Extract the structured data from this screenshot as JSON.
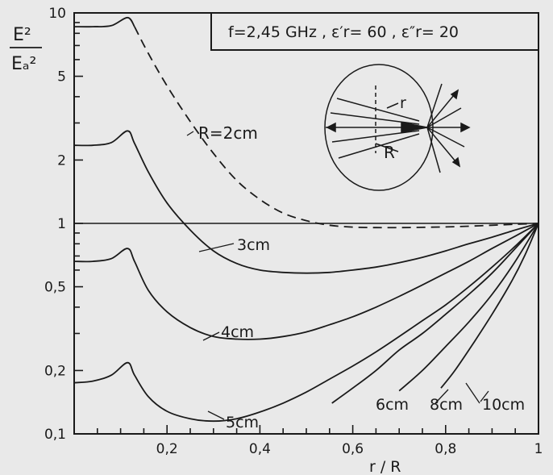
{
  "chart_data": {
    "type": "line",
    "title": "",
    "annotation_box": "f=2,45 GHz , ε′r= 60 , ε″r= 20",
    "xlabel": "r / R",
    "ylabel_numerator": "E²",
    "ylabel_denominator": "Eₐ²",
    "xlim": [
      0,
      1
    ],
    "ylim": [
      0.1,
      10
    ],
    "y_scale": "log",
    "grid": false,
    "x_ticks": [
      {
        "value": 0.2,
        "label": "0,2"
      },
      {
        "value": 0.4,
        "label": "0,4"
      },
      {
        "value": 0.6,
        "label": "0,6"
      },
      {
        "value": 0.8,
        "label": "0,8"
      },
      {
        "value": 1.0,
        "label": "1"
      }
    ],
    "y_ticks": [
      {
        "value": 10,
        "label": "10"
      },
      {
        "value": 5,
        "label": "5"
      },
      {
        "value": 2,
        "label": "2"
      },
      {
        "value": 1,
        "label": "1"
      },
      {
        "value": 0.5,
        "label": "0,5"
      },
      {
        "value": 0.2,
        "label": "0,2"
      },
      {
        "value": 0.1,
        "label": "0,1"
      }
    ],
    "reference_line": {
      "y": 1
    },
    "series": [
      {
        "label": "R=2cm",
        "style": "solid-then-dashed",
        "x": [
          0.0,
          0.04,
          0.08,
          0.115,
          0.13,
          0.16,
          0.2,
          0.25,
          0.3,
          0.35,
          0.4,
          0.45,
          0.5,
          0.55,
          0.6,
          0.65,
          0.7,
          0.75,
          0.8,
          0.85,
          0.9,
          0.95,
          1.0
        ],
        "y": [
          8.6,
          8.6,
          8.7,
          9.5,
          8.6,
          6.4,
          4.5,
          3.05,
          2.15,
          1.6,
          1.3,
          1.12,
          1.03,
          0.98,
          0.96,
          0.955,
          0.955,
          0.958,
          0.962,
          0.97,
          0.98,
          0.99,
          1.0
        ],
        "dash_from_x": 0.13
      },
      {
        "label": "3cm",
        "style": "solid",
        "x": [
          0.0,
          0.04,
          0.08,
          0.115,
          0.13,
          0.16,
          0.2,
          0.25,
          0.3,
          0.35,
          0.4,
          0.45,
          0.5,
          0.55,
          0.6,
          0.65,
          0.7,
          0.75,
          0.8,
          0.85,
          0.9,
          0.95,
          1.0
        ],
        "y": [
          2.35,
          2.35,
          2.42,
          2.75,
          2.4,
          1.75,
          1.25,
          0.93,
          0.74,
          0.645,
          0.6,
          0.585,
          0.58,
          0.585,
          0.6,
          0.62,
          0.65,
          0.69,
          0.74,
          0.8,
          0.86,
          0.93,
          1.0
        ]
      },
      {
        "label": "4cm",
        "style": "solid",
        "x": [
          0.0,
          0.04,
          0.08,
          0.115,
          0.13,
          0.16,
          0.2,
          0.25,
          0.3,
          0.35,
          0.4,
          0.45,
          0.5,
          0.55,
          0.6,
          0.65,
          0.7,
          0.75,
          0.8,
          0.85,
          0.9,
          0.95,
          1.0
        ],
        "y": [
          0.66,
          0.66,
          0.68,
          0.76,
          0.66,
          0.48,
          0.38,
          0.32,
          0.29,
          0.282,
          0.282,
          0.29,
          0.305,
          0.33,
          0.36,
          0.4,
          0.45,
          0.51,
          0.58,
          0.66,
          0.76,
          0.87,
          1.0
        ]
      },
      {
        "label": "5cm",
        "style": "solid",
        "x": [
          0.0,
          0.04,
          0.08,
          0.115,
          0.13,
          0.16,
          0.2,
          0.25,
          0.3,
          0.35,
          0.4,
          0.45,
          0.5,
          0.55,
          0.6,
          0.65,
          0.7,
          0.75,
          0.8,
          0.85,
          0.9,
          0.95,
          1.0
        ],
        "y": [
          0.175,
          0.178,
          0.19,
          0.218,
          0.19,
          0.15,
          0.128,
          0.118,
          0.115,
          0.118,
          0.127,
          0.14,
          0.158,
          0.182,
          0.21,
          0.245,
          0.29,
          0.345,
          0.41,
          0.5,
          0.62,
          0.78,
          1.0
        ]
      },
      {
        "label": "6cm",
        "style": "solid",
        "x": [
          0.555,
          0.6,
          0.65,
          0.7,
          0.75,
          0.8,
          0.85,
          0.9,
          0.95,
          1.0
        ],
        "y": [
          0.14,
          0.165,
          0.2,
          0.25,
          0.3,
          0.37,
          0.46,
          0.58,
          0.76,
          1.0
        ]
      },
      {
        "label": "8cm",
        "style": "solid",
        "x": [
          0.7,
          0.75,
          0.8,
          0.85,
          0.9,
          0.95,
          1.0
        ],
        "y": [
          0.16,
          0.2,
          0.26,
          0.34,
          0.46,
          0.66,
          1.0
        ]
      },
      {
        "label": "10cm",
        "style": "solid",
        "x": [
          0.79,
          0.82,
          0.86,
          0.9,
          0.94,
          0.97,
          1.0
        ],
        "y": [
          0.165,
          0.2,
          0.27,
          0.37,
          0.52,
          0.7,
          1.0
        ]
      }
    ],
    "inset_labels": {
      "r": "r",
      "R": "R"
    }
  }
}
